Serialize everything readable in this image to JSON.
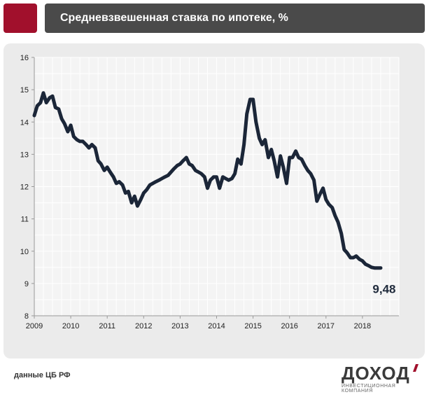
{
  "header": {
    "title": "Средневзвешенная ставка по ипотеке, %",
    "accent_color": "#a1102c",
    "bar_color": "#4a4a4a"
  },
  "footer": {
    "source": "данные ЦБ РФ",
    "logo_name": "ДОХОД",
    "logo_tagline": "ИНВЕСТИЦИОННАЯ КОМПАНИЯ"
  },
  "chart_data": {
    "type": "line",
    "title": "Средневзвешенная ставка по ипотеке, %",
    "xlabel": "",
    "ylabel": "",
    "xlim": [
      2009,
      2019
    ],
    "ylim": [
      8,
      16
    ],
    "yticks": [
      "8",
      "9",
      "10",
      "11",
      "12",
      "13",
      "14",
      "15",
      "16"
    ],
    "xticks": [
      "2009",
      "2010",
      "2011",
      "2012",
      "2013",
      "2014",
      "2015",
      "2016",
      "2017",
      "2018"
    ],
    "grid": true,
    "line_color": "#1b2638",
    "end_label": "9,48",
    "series": [
      {
        "x": [
          2009.0,
          2009.08,
          2009.17,
          2009.25,
          2009.33,
          2009.42,
          2009.5,
          2009.58,
          2009.67,
          2009.75,
          2009.83,
          2009.92,
          2010.0,
          2010.08,
          2010.17,
          2010.25,
          2010.33,
          2010.42,
          2010.5,
          2010.58,
          2010.67,
          2010.75,
          2010.83,
          2010.92,
          2011.0,
          2011.08,
          2011.17,
          2011.25,
          2011.33,
          2011.42,
          2011.5,
          2011.58,
          2011.67,
          2011.75,
          2011.83,
          2011.92,
          2012.0,
          2012.08,
          2012.17,
          2012.25,
          2012.33,
          2012.42,
          2012.5,
          2012.58,
          2012.67,
          2012.75,
          2012.83,
          2012.92,
          2013.0,
          2013.08,
          2013.17,
          2013.25,
          2013.33,
          2013.42,
          2013.5,
          2013.58,
          2013.67,
          2013.75,
          2013.83,
          2013.92,
          2014.0,
          2014.08,
          2014.17,
          2014.25,
          2014.33,
          2014.42,
          2014.5,
          2014.58,
          2014.67,
          2014.75,
          2014.83,
          2014.92,
          2015.0,
          2015.08,
          2015.17,
          2015.25,
          2015.33,
          2015.42,
          2015.5,
          2015.58,
          2015.67,
          2015.75,
          2015.83,
          2015.92,
          2016.0,
          2016.08,
          2016.17,
          2016.25,
          2016.33,
          2016.42,
          2016.5,
          2016.58,
          2016.67,
          2016.75,
          2016.83,
          2016.92,
          2017.0,
          2017.08,
          2017.17,
          2017.25,
          2017.33,
          2017.42,
          2017.5,
          2017.58,
          2017.67,
          2017.75,
          2017.83,
          2017.92,
          2018.0,
          2018.08,
          2018.17,
          2018.25,
          2018.33,
          2018.42,
          2018.5
        ],
        "y": [
          14.2,
          14.5,
          14.6,
          14.9,
          14.6,
          14.75,
          14.8,
          14.45,
          14.4,
          14.1,
          13.95,
          13.7,
          13.9,
          13.55,
          13.45,
          13.4,
          13.4,
          13.3,
          13.2,
          13.3,
          13.2,
          12.8,
          12.7,
          12.5,
          12.6,
          12.45,
          12.3,
          12.1,
          12.15,
          12.05,
          11.8,
          11.85,
          11.5,
          11.7,
          11.4,
          11.6,
          11.8,
          11.9,
          12.05,
          12.1,
          12.15,
          12.2,
          12.25,
          12.3,
          12.35,
          12.45,
          12.55,
          12.65,
          12.7,
          12.8,
          12.9,
          12.7,
          12.65,
          12.5,
          12.45,
          12.4,
          12.3,
          11.95,
          12.2,
          12.3,
          12.3,
          11.95,
          12.3,
          12.25,
          12.2,
          12.25,
          12.4,
          12.85,
          12.7,
          13.3,
          14.25,
          14.7,
          14.7,
          14.0,
          13.5,
          13.3,
          13.45,
          12.9,
          13.15,
          12.8,
          12.3,
          12.95,
          12.6,
          12.1,
          12.9,
          12.9,
          13.1,
          12.9,
          12.85,
          12.65,
          12.5,
          12.4,
          12.2,
          11.55,
          11.75,
          11.95,
          11.6,
          11.45,
          11.35,
          11.1,
          10.9,
          10.55,
          10.05,
          9.95,
          9.8,
          9.8,
          9.85,
          9.75,
          9.7,
          9.6,
          9.55,
          9.5,
          9.48,
          9.48,
          9.48
        ]
      }
    ]
  }
}
